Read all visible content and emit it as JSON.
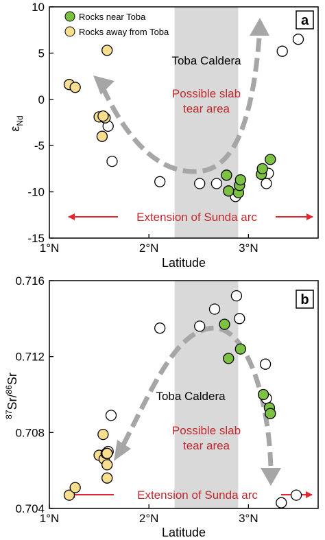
{
  "colors": {
    "green_fill": "#7dc142",
    "yellow_fill": "#f7df8f",
    "open_marker_stroke": "#000000",
    "shade": "#d9d9d9",
    "arrow_gray": "#a6a6a6",
    "red": "#e3262e",
    "red_text": "#c0282d"
  },
  "chart_data": [
    {
      "type": "scatter",
      "panel_label": "a",
      "xlabel": "Latitude",
      "ylabel_base": "ε",
      "ylabel_sub": "Nd",
      "xlim": [
        1,
        3.7
      ],
      "ylim": [
        -15,
        10
      ],
      "x_ticks": [
        1,
        2,
        3
      ],
      "x_tick_labels": [
        "1°N",
        "2°N",
        "3°N"
      ],
      "y_ticks": [
        -15,
        -10,
        -5,
        0,
        5,
        10
      ],
      "y_tick_labels": [
        "-15",
        "-10",
        "-5",
        "0",
        "5",
        "10"
      ],
      "shaded_band": [
        2.27,
        2.93
      ],
      "legend": [
        {
          "name": "Rocks near Toba",
          "color": "#7dc142"
        },
        {
          "name": "Rocks away from Toba",
          "color": "#f7df8f"
        }
      ],
      "annotations": {
        "caldera": "Toba Caldera",
        "slab_tear_line1": "Possible slab",
        "slab_tear_line2": "tear area",
        "sunda_arc": "Extension of Sunda arc"
      },
      "series": [
        {
          "name": "Rocks near Toba",
          "x": [
            2.78,
            2.8,
            2.9,
            2.91,
            2.92,
            3.13,
            3.14,
            3.22
          ],
          "y": [
            -8.2,
            -9.9,
            -10.1,
            -9.3,
            -8.7,
            -8.1,
            -7.5,
            -6.5
          ]
        },
        {
          "name": "Rocks away from Toba",
          "x": [
            1.2,
            1.26,
            1.5,
            1.53,
            1.56,
            1.54,
            1.58
          ],
          "y": [
            1.6,
            1.3,
            -1.9,
            -4.0,
            -2.0,
            -1.8,
            5.3
          ]
        },
        {
          "x": [
            1.59,
            1.63,
            2.11,
            2.51,
            2.68,
            2.87,
            3.18,
            3.2,
            3.34,
            3.5
          ],
          "y": [
            -2.9,
            -6.7,
            -8.9,
            -9.1,
            -9.1,
            -10.5,
            -9.1,
            -8.0,
            5.2,
            6.5
          ]
        }
      ]
    },
    {
      "type": "scatter",
      "panel_label": "b",
      "xlabel": "Latitude",
      "ylabel_sup1": "87",
      "ylabel_mid": "Sr/",
      "ylabel_sup2": "86",
      "ylabel_end": "Sr",
      "xlim": [
        1,
        3.7
      ],
      "ylim": [
        0.704,
        0.716
      ],
      "x_ticks": [
        1,
        2,
        3
      ],
      "x_tick_labels": [
        "1°N",
        "2°N",
        "3°N"
      ],
      "y_ticks": [
        0.704,
        0.708,
        0.712,
        0.716
      ],
      "y_tick_labels": [
        "0.704",
        "0.708",
        "0.712",
        "0.716"
      ],
      "shaded_band": [
        2.27,
        2.93
      ],
      "annotations": {
        "caldera": "Toba Caldera",
        "slab_tear_line1": "Possible slab",
        "slab_tear_line2": "tear area",
        "sunda_arc": "Extension of Sunda arc"
      },
      "series": [
        {
          "name": "Rocks near Toba",
          "x": [
            2.76,
            2.8,
            2.92,
            3.15,
            3.21,
            3.22
          ],
          "y": [
            0.7137,
            0.7119,
            0.7124,
            0.71,
            0.7093,
            0.709
          ]
        },
        {
          "name": "Rocks away from Toba",
          "x": [
            1.2,
            1.26,
            1.5,
            1.54,
            1.55,
            1.57,
            1.58,
            1.58,
            1.58
          ],
          "y": [
            0.7047,
            0.7051,
            0.7068,
            0.7079,
            0.7066,
            0.7069,
            0.7063,
            0.7056,
            0.7069
          ]
        },
        {
          "x": [
            1.59,
            1.62,
            2.11,
            2.51,
            2.66,
            2.88,
            2.91,
            3.17,
            3.18,
            3.33,
            3.48
          ],
          "y": [
            0.707,
            0.7089,
            0.7135,
            0.7136,
            0.7145,
            0.7152,
            0.714,
            0.7116,
            0.7098,
            0.7043,
            0.7047
          ]
        }
      ]
    }
  ]
}
